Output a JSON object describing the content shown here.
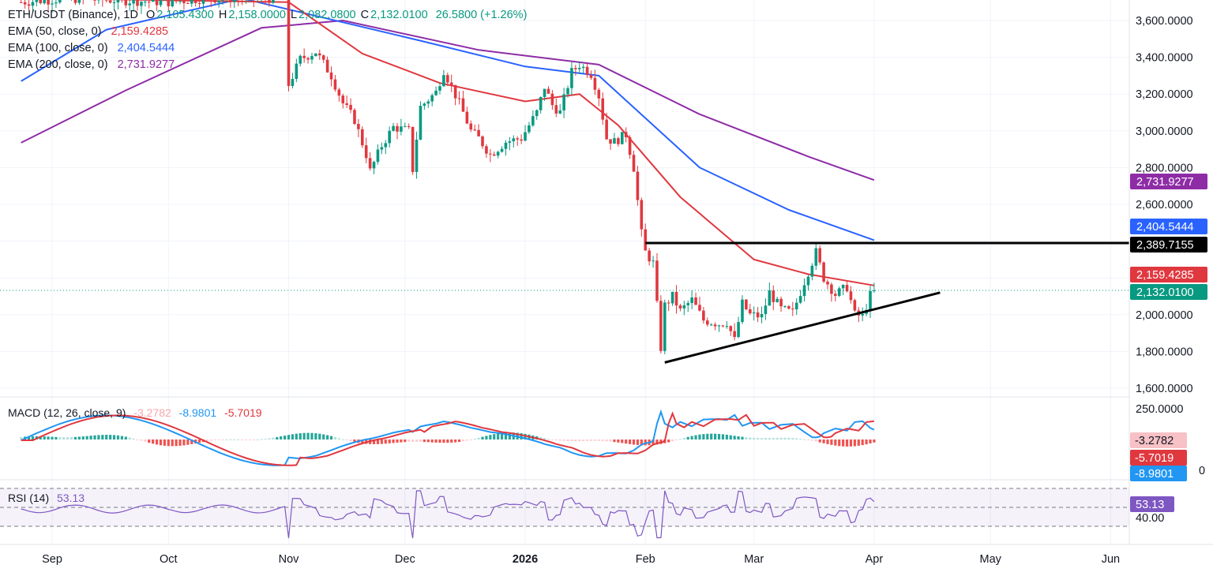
{
  "header": {
    "symbol": "ETH/USDT (Binance), 1D",
    "o_label": "O",
    "o_value": "2,105.4300",
    "h_label": "H",
    "h_value": "2,158.0000",
    "l_label": "L",
    "l_value": "2,082.0800",
    "c_label": "C",
    "c_value": "2,132.0100",
    "change": "26.5800 (+1.26%)"
  },
  "ema": [
    {
      "label": "EMA (50, close, 0)",
      "value": "2,159.4285",
      "color": "#e0383f"
    },
    {
      "label": "EMA (100, close, 0)",
      "value": "2,404.5444",
      "color": "#2962ff"
    },
    {
      "label": "EMA (200, close, 0)",
      "value": "2,731.9277",
      "color": "#8e2ca6"
    }
  ],
  "macd": {
    "label": "MACD (12, 26, close, 9)",
    "hist": "-3.2782",
    "macd": "-8.9801",
    "signal": "-5.7019"
  },
  "rsi": {
    "label": "RSI (14)",
    "value": "53.13",
    "level": "40.00"
  },
  "price_axis": [
    "3,600.0000",
    "3,400.0000",
    "3,200.0000",
    "3,000.0000",
    "2,800.0000",
    "2,600.0000",
    "2,000.0000",
    "1,800.0000",
    "1,600.0000"
  ],
  "price_badges": [
    {
      "text": "2,731.9277",
      "bg": "#8e2ca6"
    },
    {
      "text": "2,404.5444",
      "bg": "#2962ff"
    },
    {
      "text": "2,389.7155",
      "bg": "#000000"
    },
    {
      "text": "2,159.4285",
      "bg": "#e0383f"
    },
    {
      "text": "2,132.0100",
      "bg": "#089981"
    }
  ],
  "macd_axis": "250.0000",
  "macd_badges": [
    {
      "text": "-3.2782",
      "bg": "#f7c1c6",
      "fg": "#131722"
    },
    {
      "text": "-5.7019",
      "bg": "#e0383f",
      "fg": "#ffffff"
    },
    {
      "text": "-8.9801",
      "bg": "#2196f3",
      "fg": "#ffffff"
    }
  ],
  "macd_axis_partial": "0",
  "time_axis": [
    "Sep",
    "Oct",
    "Nov",
    "Dec",
    "2026",
    "Feb",
    "Mar",
    "Apr",
    "May",
    "Jun"
  ],
  "colors": {
    "up": "#089981",
    "down": "#e0383f",
    "ema50": "#e0383f",
    "ema100": "#2962ff",
    "ema200": "#8e2ca6",
    "rsi": "#7e57c2",
    "macd": "#2196f3",
    "signal": "#e0383f"
  },
  "chart_data": {
    "type": "candlestick",
    "title": "ETH/USDT (Binance), 1D",
    "ylim": [
      1520,
      3720
    ],
    "close_series": [
      {
        "date": "2025-08-24",
        "close": 3700
      },
      {
        "date": "2025-09-05",
        "close": 3720
      },
      {
        "date": "2025-10-01",
        "close": 3700
      },
      {
        "date": "2025-10-10",
        "close": 3720
      },
      {
        "date": "2025-10-31",
        "close": 3720
      },
      {
        "date": "2025-11-01",
        "close": 3250
      },
      {
        "date": "2025-11-04",
        "close": 3390
      },
      {
        "date": "2025-11-08",
        "close": 3430
      },
      {
        "date": "2025-11-12",
        "close": 3300
      },
      {
        "date": "2025-11-15",
        "close": 3150
      },
      {
        "date": "2025-11-18",
        "close": 3060
      },
      {
        "date": "2025-11-21",
        "close": 2870
      },
      {
        "date": "2025-11-22",
        "close": 2780
      },
      {
        "date": "2025-11-25",
        "close": 2920
      },
      {
        "date": "2025-11-28",
        "close": 3020
      },
      {
        "date": "2025-12-02",
        "close": 3000
      },
      {
        "date": "2025-12-03",
        "close": 2790
      },
      {
        "date": "2025-12-05",
        "close": 3130
      },
      {
        "date": "2025-12-09",
        "close": 3210
      },
      {
        "date": "2025-12-11",
        "close": 3330
      },
      {
        "date": "2025-12-15",
        "close": 3150
      },
      {
        "date": "2025-12-18",
        "close": 3000
      },
      {
        "date": "2025-12-20",
        "close": 2960
      },
      {
        "date": "2025-12-23",
        "close": 2870
      },
      {
        "date": "2025-12-27",
        "close": 2940
      },
      {
        "date": "2025-12-31",
        "close": 2960
      },
      {
        "date": "2026-01-04",
        "close": 3100
      },
      {
        "date": "2026-01-06",
        "close": 3240
      },
      {
        "date": "2026-01-08",
        "close": 3140
      },
      {
        "date": "2026-01-10",
        "close": 3100
      },
      {
        "date": "2026-01-13",
        "close": 3320
      },
      {
        "date": "2026-01-15",
        "close": 3360
      },
      {
        "date": "2026-01-18",
        "close": 3310
      },
      {
        "date": "2026-01-20",
        "close": 3190
      },
      {
        "date": "2026-01-22",
        "close": 2960
      },
      {
        "date": "2026-01-24",
        "close": 2940
      },
      {
        "date": "2026-01-27",
        "close": 2980
      },
      {
        "date": "2026-01-29",
        "close": 2800
      },
      {
        "date": "2026-01-30",
        "close": 2620
      },
      {
        "date": "2026-01-31",
        "close": 2440
      },
      {
        "date": "2026-02-01",
        "close": 2340
      },
      {
        "date": "2026-02-03",
        "close": 2280
      },
      {
        "date": "2026-02-05",
        "close": 1820
      },
      {
        "date": "2026-02-06",
        "close": 2050
      },
      {
        "date": "2026-02-08",
        "close": 2100
      },
      {
        "date": "2026-02-10",
        "close": 2020
      },
      {
        "date": "2026-02-13",
        "close": 2080
      },
      {
        "date": "2026-02-16",
        "close": 1970
      },
      {
        "date": "2026-02-20",
        "close": 1950
      },
      {
        "date": "2026-02-22",
        "close": 1960
      },
      {
        "date": "2026-02-24",
        "close": 1860
      },
      {
        "date": "2026-02-26",
        "close": 2060
      },
      {
        "date": "2026-02-28",
        "close": 2000
      },
      {
        "date": "2026-03-03",
        "close": 1990
      },
      {
        "date": "2026-03-05",
        "close": 2120
      },
      {
        "date": "2026-03-08",
        "close": 2030
      },
      {
        "date": "2026-03-11",
        "close": 2010
      },
      {
        "date": "2026-03-14",
        "close": 2180
      },
      {
        "date": "2026-03-17",
        "close": 2340
      },
      {
        "date": "2026-03-19",
        "close": 2200
      },
      {
        "date": "2026-03-22",
        "close": 2110
      },
      {
        "date": "2026-03-25",
        "close": 2150
      },
      {
        "date": "2026-03-27",
        "close": 2000
      },
      {
        "date": "2026-03-29",
        "close": 1990
      },
      {
        "date": "2026-03-31",
        "close": 2105
      },
      {
        "date": "2026-04-01",
        "close": 2132
      }
    ],
    "ema50": [
      {
        "date": "2025-09-01",
        "value": 3720
      },
      {
        "date": "2025-11-01",
        "value": 3700
      },
      {
        "date": "2025-11-20",
        "value": 3420
      },
      {
        "date": "2025-12-10",
        "value": 3260
      },
      {
        "date": "2026-01-01",
        "value": 3160
      },
      {
        "date": "2026-01-15",
        "value": 3200
      },
      {
        "date": "2026-01-25",
        "value": 3030
      },
      {
        "date": "2026-02-10",
        "value": 2640
      },
      {
        "date": "2026-03-01",
        "value": 2300
      },
      {
        "date": "2026-03-15",
        "value": 2220
      },
      {
        "date": "2026-04-01",
        "value": 2159
      }
    ],
    "ema100": [
      {
        "date": "2025-08-24",
        "value": 3270
      },
      {
        "date": "2025-09-15",
        "value": 3550
      },
      {
        "date": "2025-10-20",
        "value": 3720
      },
      {
        "date": "2025-12-05",
        "value": 3490
      },
      {
        "date": "2026-01-01",
        "value": 3350
      },
      {
        "date": "2026-01-20",
        "value": 3300
      },
      {
        "date": "2026-02-15",
        "value": 2800
      },
      {
        "date": "2026-03-10",
        "value": 2570
      },
      {
        "date": "2026-04-01",
        "value": 2405
      }
    ],
    "ema200": [
      {
        "date": "2025-08-24",
        "value": 2935
      },
      {
        "date": "2025-09-20",
        "value": 3220
      },
      {
        "date": "2025-10-25",
        "value": 3560
      },
      {
        "date": "2025-11-15",
        "value": 3600
      },
      {
        "date": "2025-12-20",
        "value": 3440
      },
      {
        "date": "2026-01-20",
        "value": 3360
      },
      {
        "date": "2026-02-15",
        "value": 3090
      },
      {
        "date": "2026-03-15",
        "value": 2860
      },
      {
        "date": "2026-04-01",
        "value": 2732
      }
    ],
    "resistance": {
      "value": 2389.7155,
      "from": "2026-02-01",
      "to_edge": true
    },
    "support_trendline": [
      {
        "date": "2026-02-06",
        "value": 1740
      },
      {
        "date": "2026-04-18",
        "value": 2120
      }
    ],
    "last_price": 2132.01
  }
}
